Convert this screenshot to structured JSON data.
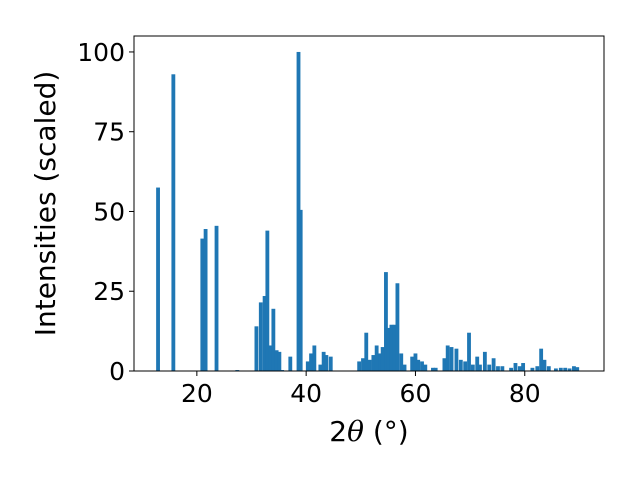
{
  "chart_data": {
    "type": "bar",
    "xlabel": "2θ (°)",
    "xlabel_parts": {
      "prefix": "2",
      "symbol": "θ",
      "suffix": " (°)"
    },
    "ylabel": "Intensities (scaled)",
    "xlim": [
      8.5,
      94.5
    ],
    "ylim": [
      0,
      105
    ],
    "xticks": [
      20,
      40,
      60,
      80
    ],
    "yticks": [
      0,
      25,
      50,
      75,
      100
    ],
    "bar_color": "#1f77b4",
    "bar_width": 0.7,
    "grid": false,
    "x": [
      12.9,
      15.7,
      21.0,
      21.6,
      23.6,
      27.4,
      30.9,
      31.7,
      32.4,
      32.9,
      33.4,
      34.0,
      34.6,
      35.1,
      35.6,
      37.1,
      38.6,
      39.0,
      40.3,
      40.9,
      41.5,
      42.6,
      43.2,
      43.7,
      44.5,
      49.7,
      50.4,
      51.0,
      51.6,
      52.3,
      52.9,
      53.5,
      54.0,
      54.6,
      55.1,
      55.6,
      56.2,
      56.7,
      57.4,
      58.0,
      59.4,
      60.0,
      60.5,
      61.2,
      61.8,
      63.2,
      63.7,
      65.3,
      65.9,
      66.6,
      67.5,
      68.3,
      69.1,
      69.8,
      70.5,
      71.3,
      71.8,
      72.7,
      73.5,
      74.3,
      75.1,
      75.9,
      77.5,
      78.3,
      79.1,
      79.7,
      81.4,
      82.3,
      83.0,
      83.6,
      84.4,
      85.7,
      86.6,
      87.4,
      88.2,
      89.0,
      89.6
    ],
    "values": [
      57.5,
      93.0,
      41.5,
      44.5,
      45.5,
      0.3,
      14.0,
      21.5,
      23.5,
      44.0,
      8.0,
      19.5,
      6.5,
      6.0,
      0.3,
      4.5,
      100.0,
      50.5,
      3.0,
      5.5,
      8.0,
      2.0,
      6.0,
      5.0,
      4.5,
      3.0,
      4.0,
      12.0,
      3.5,
      5.0,
      8.0,
      5.5,
      7.5,
      31.0,
      13.5,
      14.5,
      14.5,
      27.5,
      5.5,
      2.0,
      4.5,
      5.5,
      3.5,
      3.0,
      2.0,
      1.0,
      1.0,
      4.0,
      8.0,
      7.5,
      7.0,
      3.5,
      3.0,
      12.0,
      2.0,
      4.5,
      2.0,
      6.0,
      2.0,
      4.0,
      1.5,
      1.5,
      1.0,
      2.5,
      1.5,
      2.5,
      1.0,
      1.5,
      7.0,
      3.5,
      1.5,
      0.8,
      1.0,
      1.0,
      0.8,
      1.5,
      1.2
    ]
  }
}
